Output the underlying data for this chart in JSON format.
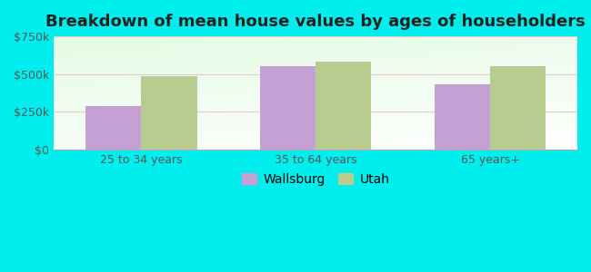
{
  "title": "Breakdown of mean house values by ages of householders",
  "categories": [
    "25 to 34 years",
    "35 to 64 years",
    "65 years+"
  ],
  "wallsburg_values": [
    290000,
    555000,
    430000
  ],
  "utah_values": [
    485000,
    580000,
    555000
  ],
  "wallsburg_color": "#c4a0d4",
  "utah_color": "#b8cc90",
  "ylim": [
    0,
    750000
  ],
  "yticks": [
    0,
    250000,
    500000,
    750000
  ],
  "ytick_labels": [
    "$0",
    "$250k",
    "$500k",
    "$750k"
  ],
  "bar_width": 0.32,
  "background_color": "#00eeee",
  "legend_labels": [
    "Wallsburg",
    "Utah"
  ],
  "title_fontsize": 13,
  "tick_fontsize": 9,
  "legend_fontsize": 10
}
